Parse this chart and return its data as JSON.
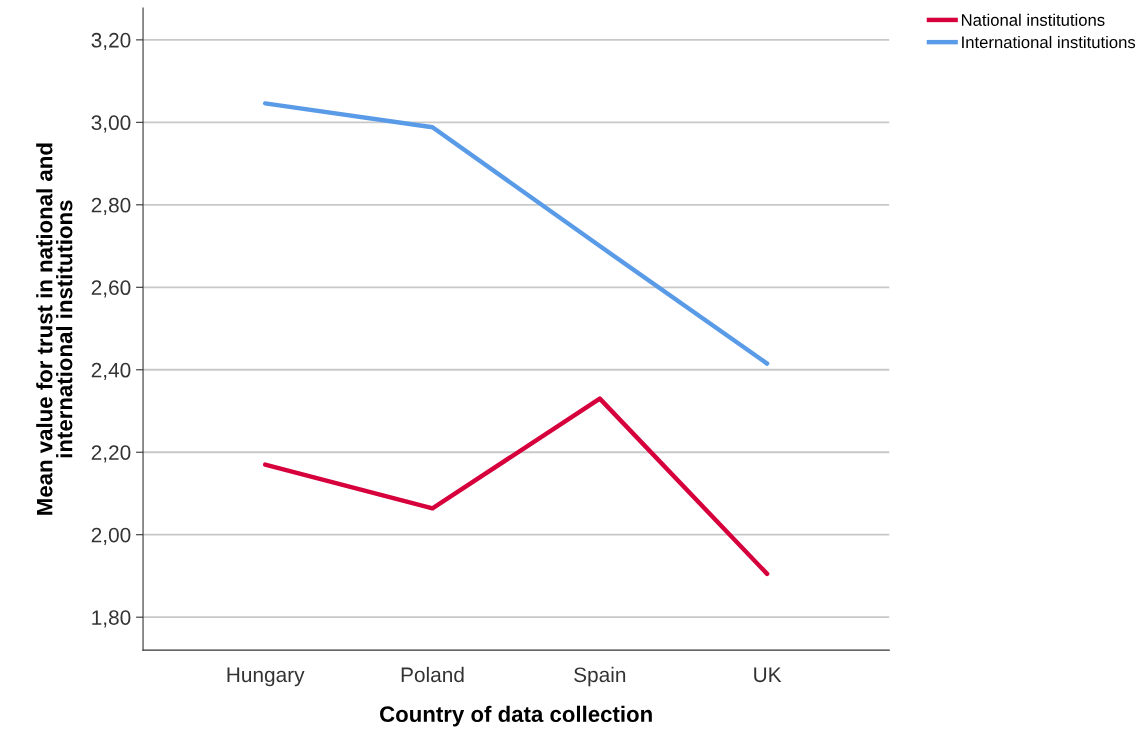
{
  "chart_data": {
    "type": "line",
    "xlabel": "Country of data collection",
    "ylabel": "Mean value for trust in national and\ninternational institutions",
    "categories": [
      "Hungary",
      "Poland",
      "Spain",
      "UK"
    ],
    "series": [
      {
        "name": "National institutions",
        "color": "#d6003c",
        "values": [
          2.17,
          2.064,
          2.33,
          1.905
        ]
      },
      {
        "name": "International institutions",
        "color": "#5a9be8",
        "values": [
          3.046,
          2.988,
          2.7,
          2.415
        ]
      }
    ],
    "ylim": [
      1.72,
      3.277
    ],
    "yticks": [
      {
        "value": 1.8,
        "label": "1,80"
      },
      {
        "value": 2.0,
        "label": "2,00"
      },
      {
        "value": 2.2,
        "label": "2,20"
      },
      {
        "value": 2.4,
        "label": "2,40"
      },
      {
        "value": 2.6,
        "label": "2,60"
      },
      {
        "value": 2.8,
        "label": "2,80"
      },
      {
        "value": 3.0,
        "label": "3,00"
      },
      {
        "value": 3.2,
        "label": "3,20"
      }
    ],
    "grid": "y",
    "legend": "top right",
    "marker": "none",
    "line_style": "solid"
  }
}
